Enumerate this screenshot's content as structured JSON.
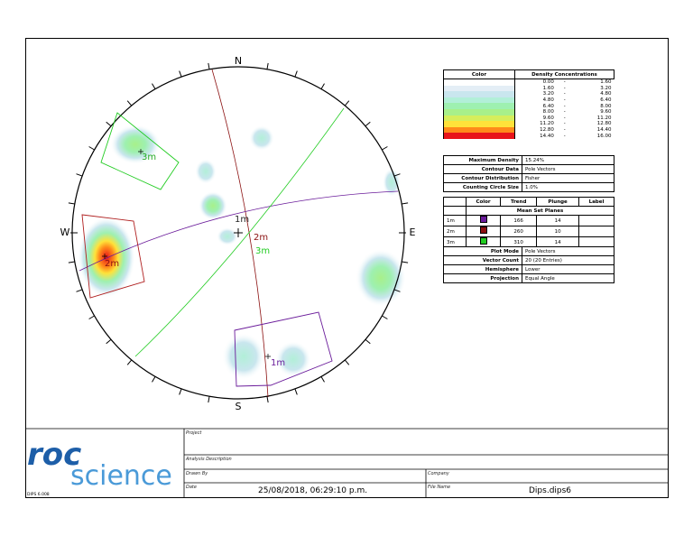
{
  "stereonet": {
    "directions": {
      "n": "N",
      "s": "S",
      "e": "E",
      "w": "W"
    },
    "center_label": "1m",
    "pole_labels": [
      "2m",
      "3m"
    ],
    "window_labels": [
      "3m",
      "2m",
      "1m"
    ]
  },
  "legend": {
    "density": {
      "headers": [
        "Color",
        "Density Concentrations"
      ],
      "rows": [
        [
          "0.00",
          "-",
          "1.60"
        ],
        [
          "1.60",
          "-",
          "3.20"
        ],
        [
          "3.20",
          "-",
          "4.80"
        ],
        [
          "4.80",
          "-",
          "6.40"
        ],
        [
          "6.40",
          "-",
          "8.00"
        ],
        [
          "8.00",
          "-",
          "9.60"
        ],
        [
          "9.60",
          "-",
          "11.20"
        ],
        [
          "11.20",
          "-",
          "12.80"
        ],
        [
          "12.80",
          "-",
          "14.40"
        ],
        [
          "14.40",
          "-",
          "16.00"
        ]
      ],
      "colors": [
        "#ffffff",
        "#e4eef6",
        "#c9e6ee",
        "#b2efd8",
        "#9ef0b0",
        "#a8f08a",
        "#d6ee5c",
        "#ffe23a",
        "#ff8a1a",
        "#e8141a"
      ]
    },
    "properties": [
      [
        "Maximum Density",
        "15.24%"
      ],
      [
        "Contour Data",
        "Pole Vectors"
      ],
      [
        "Contour Distribution",
        "Fisher"
      ],
      [
        "Counting Circle Size",
        "1.0%"
      ]
    ],
    "sets": {
      "headers": [
        "Color",
        "Trend",
        "Plunge",
        "Label"
      ],
      "title": "Mean Set Planes",
      "rows": [
        [
          "1m",
          "166",
          "14"
        ],
        [
          "2m",
          "260",
          "10"
        ],
        [
          "3m",
          "310",
          "14"
        ]
      ],
      "colors": [
        "#6a1b9a",
        "#8b1010",
        "#22cc22"
      ]
    },
    "plot": [
      [
        "Plot Mode",
        "Pole Vectors"
      ],
      [
        "Vector Count",
        "20 (20 Entries)"
      ],
      [
        "Hemisphere",
        "Lower"
      ],
      [
        "Projection",
        "Equal Angle"
      ]
    ]
  },
  "title_block": {
    "logo": [
      "roc",
      "science"
    ],
    "version": "DIPS 6.008",
    "project": "Project",
    "analysis_description": "Analysis Description",
    "drawn_by": "Drawn By",
    "company": "Company",
    "date_label": "Date",
    "date": "25/08/2018, 06:29:10 p.m.",
    "file_name_label": "File Name",
    "file_name": "Dips.dips6"
  }
}
